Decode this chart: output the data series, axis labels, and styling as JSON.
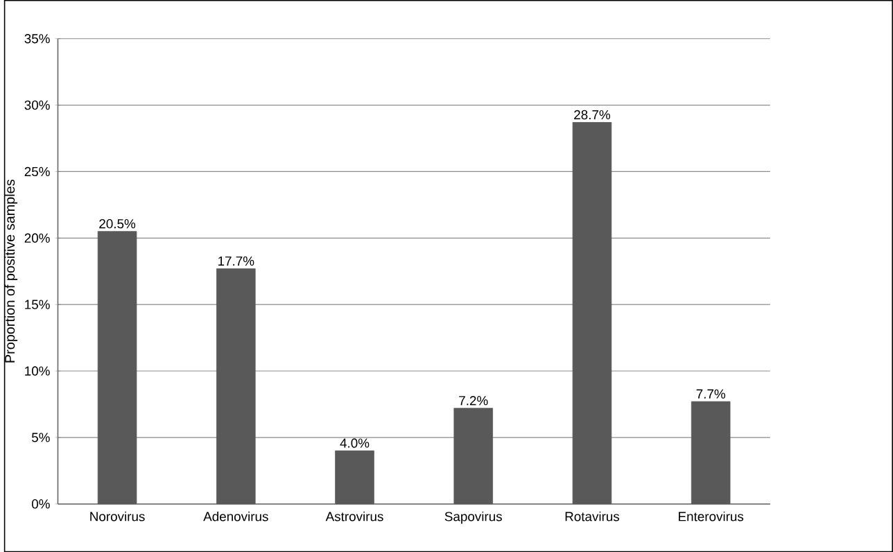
{
  "chart_data": {
    "type": "bar",
    "ylabel": "Proportion of positive samples",
    "categories": [
      "Norovirus",
      "Adenovirus",
      "Astrovirus",
      "Sapovirus",
      "Rotavirus",
      "Enterovirus"
    ],
    "values": [
      20.5,
      17.7,
      4.0,
      7.2,
      28.7,
      7.7
    ],
    "value_labels": [
      "20.5%",
      "17.7%",
      "4.0%",
      "7.2%",
      "28.7%",
      "7.7%"
    ],
    "color": "#595959",
    "ylim": [
      0,
      35
    ],
    "yticks": [
      {
        "value": 0,
        "label": "0%"
      },
      {
        "value": 5,
        "label": "5%"
      },
      {
        "value": 10,
        "label": "10%"
      },
      {
        "value": 15,
        "label": "15%"
      },
      {
        "value": 20,
        "label": "20%"
      },
      {
        "value": 25,
        "label": "25%"
      },
      {
        "value": 30,
        "label": "30%"
      },
      {
        "value": 35,
        "label": "35%"
      }
    ],
    "grid": "y"
  }
}
